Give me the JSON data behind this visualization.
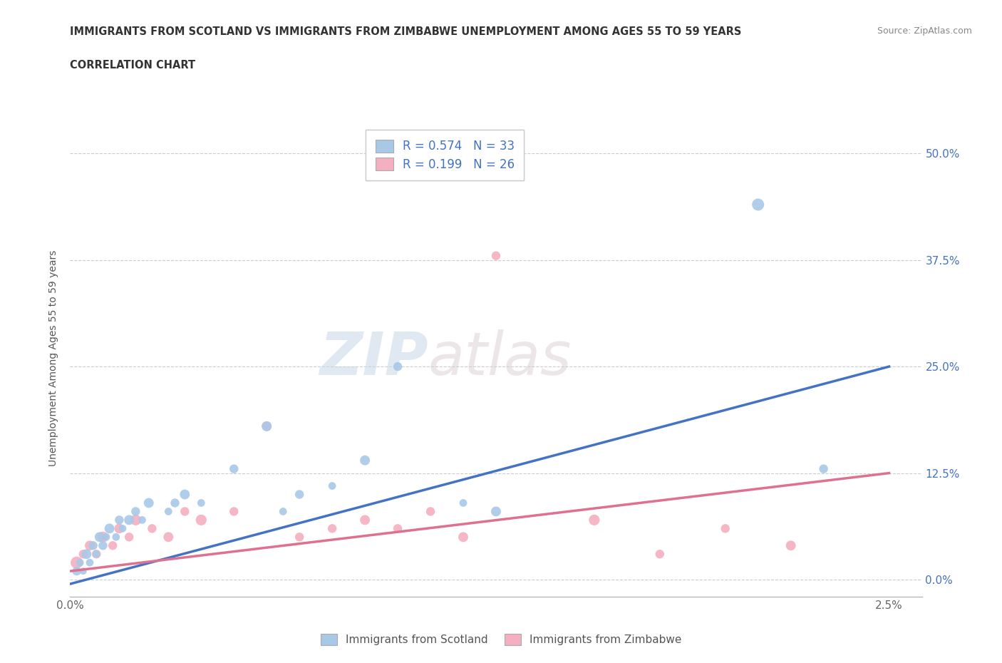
{
  "title_line1": "IMMIGRANTS FROM SCOTLAND VS IMMIGRANTS FROM ZIMBABWE UNEMPLOYMENT AMONG AGES 55 TO 59 YEARS",
  "title_line2": "CORRELATION CHART",
  "source_text": "Source: ZipAtlas.com",
  "ylabel": "Unemployment Among Ages 55 to 59 years",
  "xlim": [
    0.0,
    0.026
  ],
  "ylim": [
    -0.02,
    0.54
  ],
  "yticks": [
    0.0,
    0.125,
    0.25,
    0.375,
    0.5
  ],
  "yticklabels": [
    "0.0%",
    "12.5%",
    "25.0%",
    "37.5%",
    "50.0%"
  ],
  "xticks": [
    0.0,
    0.005,
    0.01,
    0.015,
    0.02,
    0.025
  ],
  "xticklabels": [
    "0.0%",
    "",
    "",
    "",
    "",
    "2.5%"
  ],
  "scotland_color": "#a8c8e8",
  "zimbabwe_color": "#f4b0c0",
  "line_scotland_color": "#4472c4",
  "line_zimbabwe_color": "#e07090",
  "legend_R_scotland": "R = 0.574",
  "legend_N_scotland": "N = 33",
  "legend_R_zimbabwe": "R = 0.199",
  "legend_N_zimbabwe": "N = 26",
  "watermark_zip": "ZIP",
  "watermark_atlas": "atlas",
  "scotland_x": [
    0.0002,
    0.0003,
    0.0004,
    0.0005,
    0.0006,
    0.0007,
    0.0008,
    0.0009,
    0.001,
    0.0011,
    0.0012,
    0.0014,
    0.0015,
    0.0016,
    0.0018,
    0.002,
    0.0022,
    0.0024,
    0.003,
    0.0032,
    0.0035,
    0.004,
    0.005,
    0.006,
    0.0065,
    0.007,
    0.008,
    0.009,
    0.01,
    0.012,
    0.013,
    0.021,
    0.023
  ],
  "scotland_y": [
    0.01,
    0.02,
    0.01,
    0.03,
    0.02,
    0.04,
    0.03,
    0.05,
    0.04,
    0.05,
    0.06,
    0.05,
    0.07,
    0.06,
    0.07,
    0.08,
    0.07,
    0.09,
    0.08,
    0.09,
    0.1,
    0.09,
    0.13,
    0.18,
    0.08,
    0.1,
    0.11,
    0.14,
    0.25,
    0.09,
    0.08,
    0.44,
    0.13
  ],
  "scotland_sizes": [
    80,
    60,
    50,
    100,
    60,
    80,
    60,
    100,
    80,
    60,
    100,
    60,
    80,
    60,
    100,
    80,
    60,
    100,
    60,
    80,
    100,
    60,
    80,
    100,
    60,
    80,
    60,
    100,
    80,
    60,
    100,
    150,
    80
  ],
  "zimbabwe_x": [
    0.0002,
    0.0004,
    0.0006,
    0.0008,
    0.001,
    0.0013,
    0.0015,
    0.0018,
    0.002,
    0.0025,
    0.003,
    0.0035,
    0.004,
    0.005,
    0.006,
    0.007,
    0.008,
    0.009,
    0.01,
    0.011,
    0.012,
    0.013,
    0.016,
    0.018,
    0.02,
    0.022
  ],
  "zimbabwe_y": [
    0.02,
    0.03,
    0.04,
    0.03,
    0.05,
    0.04,
    0.06,
    0.05,
    0.07,
    0.06,
    0.05,
    0.08,
    0.07,
    0.08,
    0.18,
    0.05,
    0.06,
    0.07,
    0.06,
    0.08,
    0.05,
    0.38,
    0.07,
    0.03,
    0.06,
    0.04
  ],
  "zimbabwe_sizes": [
    150,
    80,
    100,
    80,
    120,
    80,
    100,
    80,
    120,
    80,
    100,
    80,
    120,
    80,
    100,
    80,
    80,
    100,
    80,
    80,
    100,
    80,
    120,
    80,
    80,
    100
  ],
  "scotland_line_x": [
    0.0,
    0.025
  ],
  "scotland_line_y": [
    -0.005,
    0.25
  ],
  "zimbabwe_line_x": [
    0.0,
    0.025
  ],
  "zimbabwe_line_y": [
    0.01,
    0.125
  ]
}
